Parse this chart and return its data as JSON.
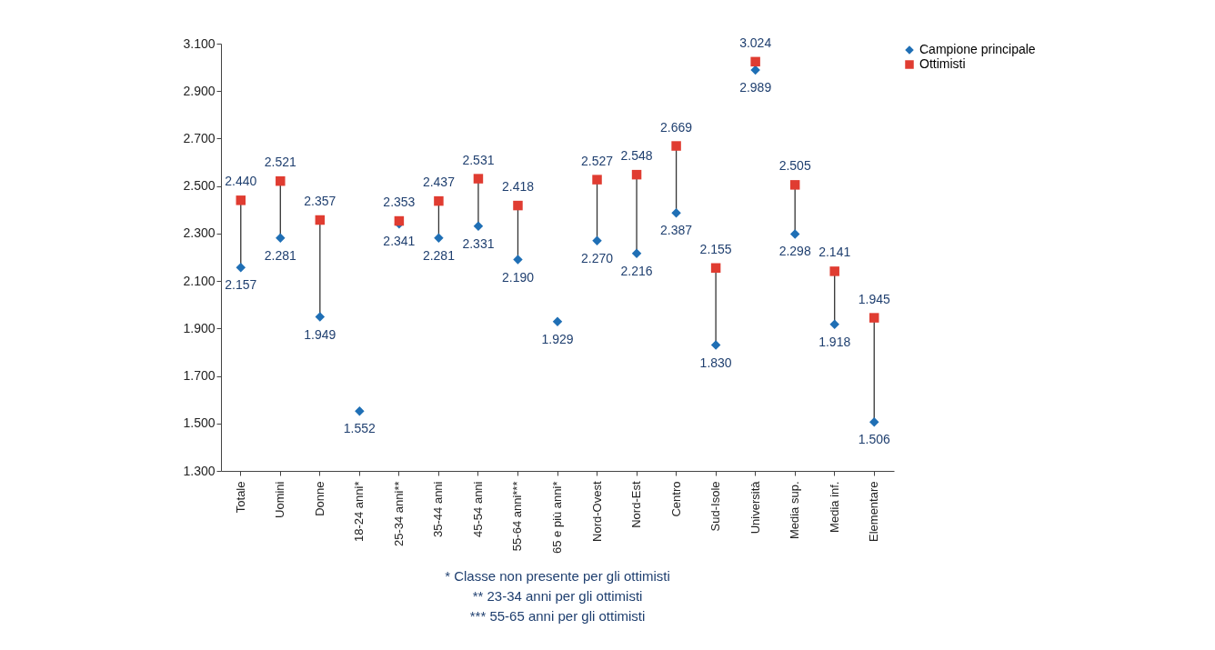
{
  "chart_data": {
    "type": "scatter",
    "categories": [
      "Totale",
      "Uomini",
      "Donne",
      "18-24 anni*",
      "25-34 anni**",
      "35-44 anni",
      "45-54 anni",
      "55-64 anni***",
      "65 e più anni*",
      "Nord-Ovest",
      "Nord-Est",
      "Centro",
      "Sud-Isole",
      "Università",
      "Media sup.",
      "Media inf.",
      "Elementare"
    ],
    "series": [
      {
        "name": "Campione principale",
        "color": "#1f6fb5",
        "marker": "diamond",
        "values": [
          2.157,
          2.281,
          1.949,
          1.552,
          2.341,
          2.281,
          2.331,
          2.19,
          1.929,
          2.27,
          2.216,
          2.387,
          1.83,
          2.989,
          2.298,
          1.918,
          1.506
        ],
        "value_labels": [
          "2.157",
          "2.281",
          "1.949",
          "1.552",
          "2.341",
          "2.281",
          "2.331",
          "2.190",
          "1.929",
          "2.270",
          "2.216",
          "2.387",
          "1.830",
          "2.989",
          "2.298",
          "1.918",
          "1.506"
        ]
      },
      {
        "name": "Ottimisti",
        "color": "#e03c31",
        "marker": "square",
        "values": [
          2.44,
          2.521,
          2.357,
          null,
          2.353,
          2.437,
          2.531,
          2.418,
          null,
          2.527,
          2.548,
          2.669,
          2.155,
          3.024,
          2.505,
          2.141,
          1.945
        ],
        "value_labels": [
          "2.440",
          "2.521",
          "2.357",
          null,
          "2.353",
          "2.437",
          "2.531",
          "2.418",
          null,
          "2.527",
          "2.548",
          "2.669",
          "2.155",
          "3.024",
          "2.505",
          "2.141",
          "1.945"
        ]
      }
    ],
    "ylim": [
      1.3,
      3.1
    ],
    "yticks": [
      {
        "value": 1.3,
        "label": "1.300"
      },
      {
        "value": 1.5,
        "label": "1.500"
      },
      {
        "value": 1.7,
        "label": "1.700"
      },
      {
        "value": 1.9,
        "label": "1.900"
      },
      {
        "value": 2.1,
        "label": "2.100"
      },
      {
        "value": 2.3,
        "label": "2.300"
      },
      {
        "value": 2.5,
        "label": "2.500"
      },
      {
        "value": 2.7,
        "label": "2.700"
      },
      {
        "value": 2.9,
        "label": "2.900"
      },
      {
        "value": 3.1,
        "label": "3.100"
      }
    ],
    "legend": "top right",
    "annotations": [
      "* Classe non presente per gli ottimisti",
      "** 23-34 anni per gli ottimisti",
      "*** 55-65 anni per gli ottimisti"
    ]
  }
}
